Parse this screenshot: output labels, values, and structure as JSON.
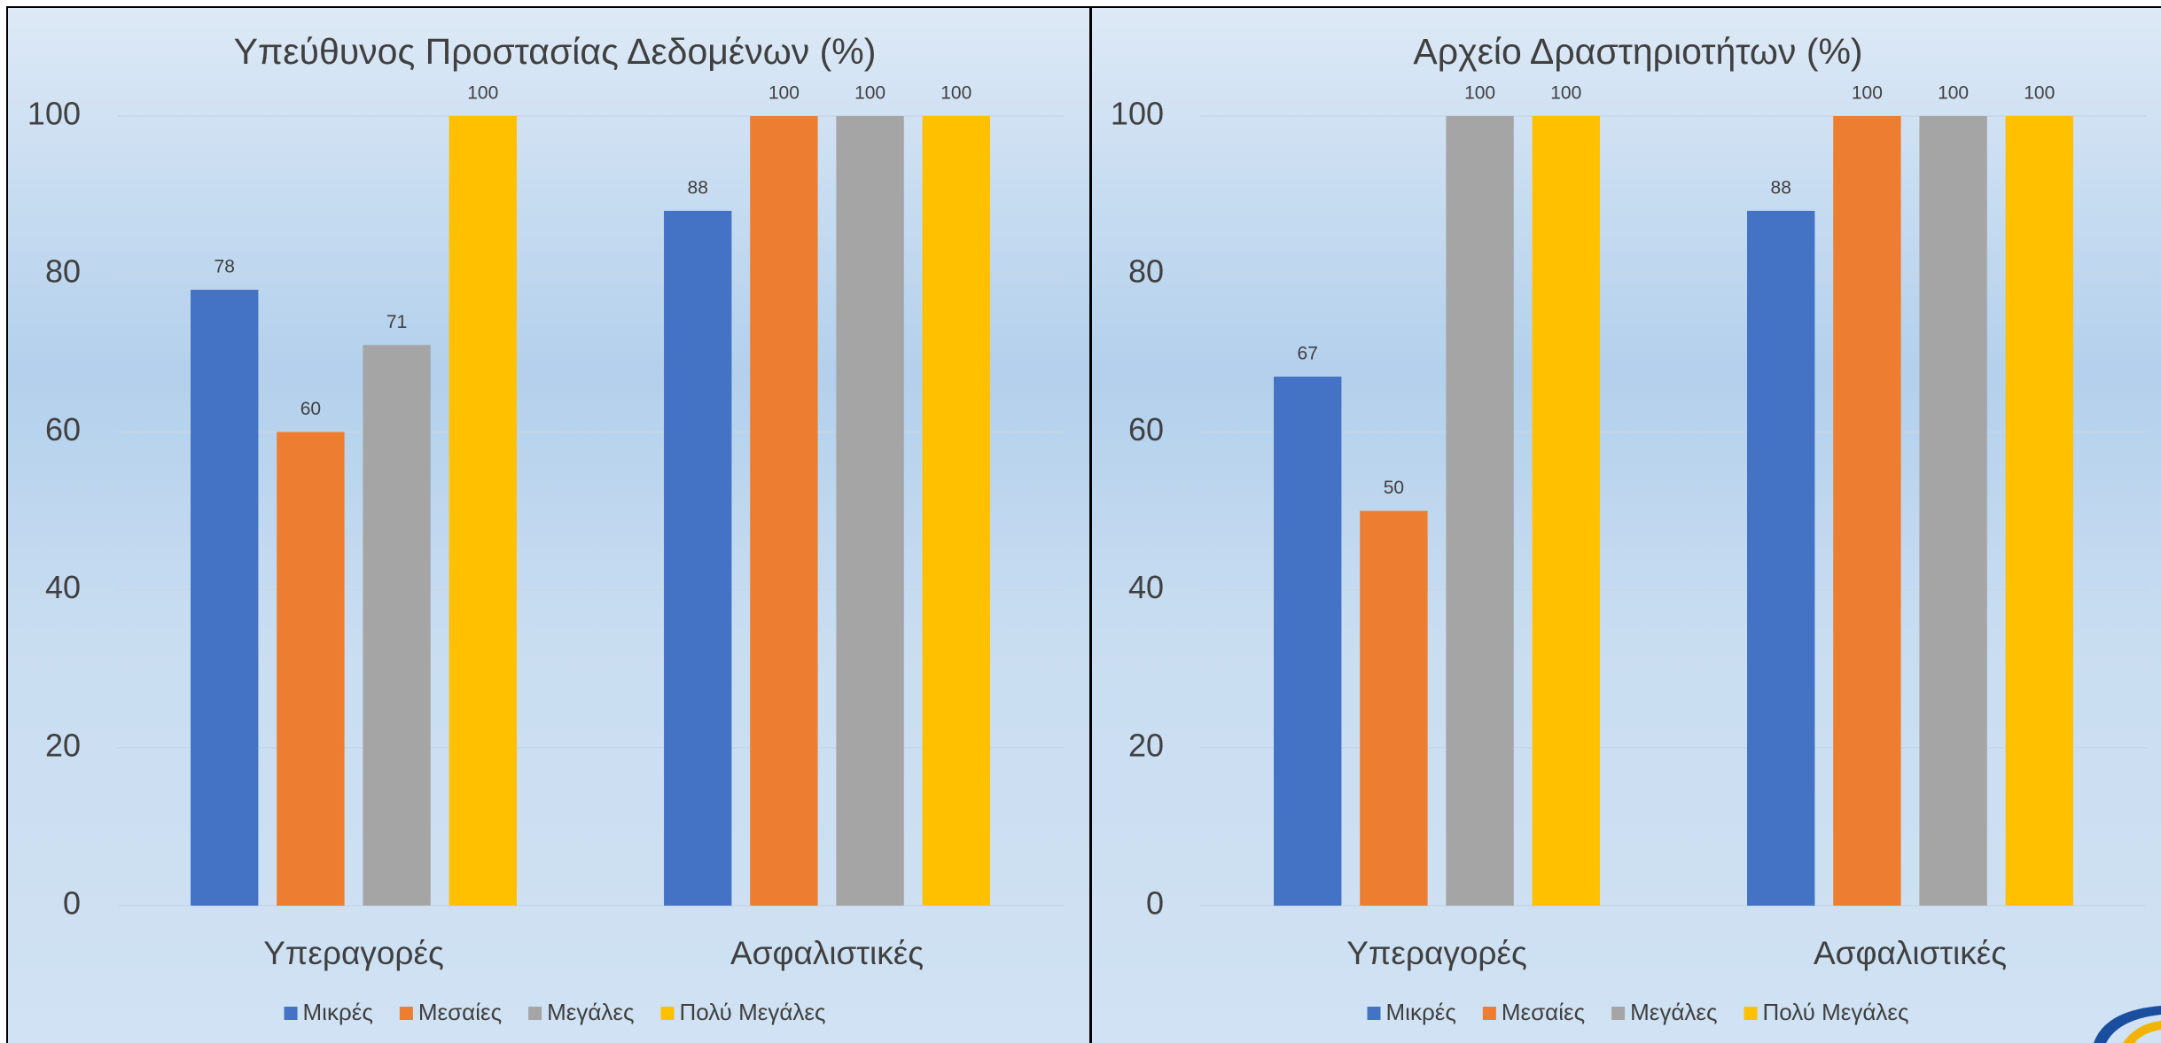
{
  "chart_data": [
    {
      "type": "bar",
      "title": "Υπεύθυνος Προστασίας Δεδομένων (%)",
      "categories": [
        "Υπεραγορές",
        "Ασφαλιστικές"
      ],
      "series": [
        {
          "name": "Μικρές",
          "color": "#4472c4",
          "values": [
            78,
            88
          ]
        },
        {
          "name": "Μεσαίες",
          "color": "#ed7d31",
          "values": [
            60,
            100
          ]
        },
        {
          "name": "Μεγάλες",
          "color": "#a5a5a5",
          "values": [
            71,
            100
          ]
        },
        {
          "name": "Πολύ Μεγάλες",
          "color": "#ffc000",
          "values": [
            100,
            100
          ]
        }
      ],
      "ylim": [
        0,
        100
      ],
      "yticks": [
        0,
        20,
        40,
        60,
        80,
        100
      ],
      "grid": true,
      "legend": "bottom"
    },
    {
      "type": "bar",
      "title": "Αρχείο Δραστηριοτήτων (%)",
      "categories": [
        "Υπεραγορές",
        "Ασφαλιστικές"
      ],
      "series": [
        {
          "name": "Μικρές",
          "color": "#4472c4",
          "values": [
            67,
            88
          ]
        },
        {
          "name": "Μεσαίες",
          "color": "#ed7d31",
          "values": [
            50,
            100
          ]
        },
        {
          "name": "Μεγάλες",
          "color": "#a5a5a5",
          "values": [
            100,
            100
          ]
        },
        {
          "name": "Πολύ Μεγάλες",
          "color": "#ffc000",
          "values": [
            100,
            100
          ]
        }
      ],
      "ylim": [
        0,
        100
      ],
      "yticks": [
        0,
        20,
        40,
        60,
        80,
        100
      ],
      "grid": true,
      "legend": "bottom"
    }
  ]
}
